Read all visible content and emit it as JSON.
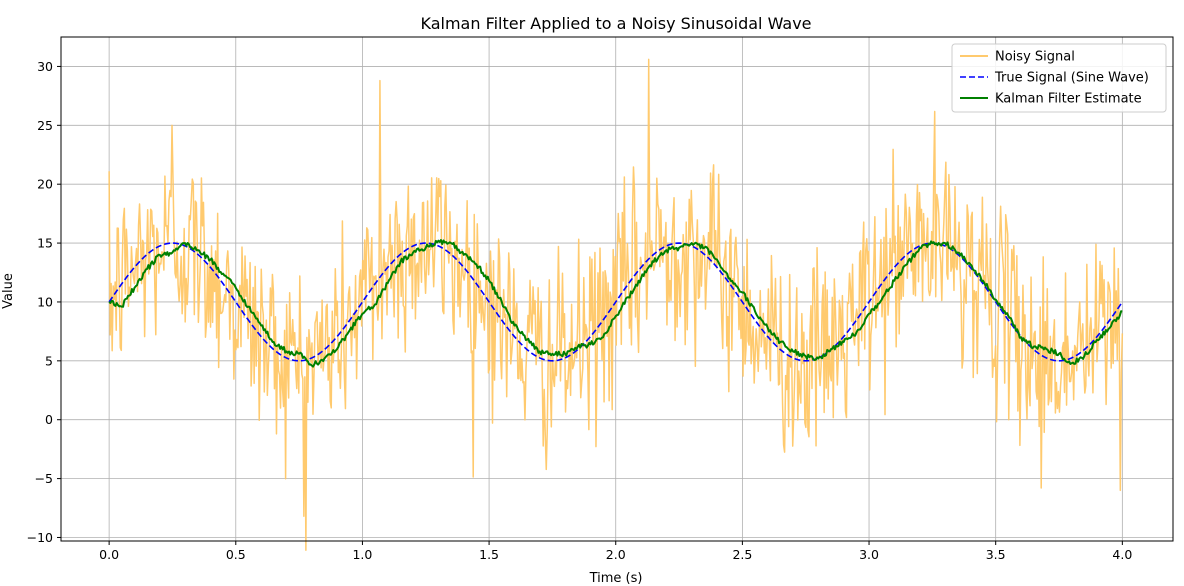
{
  "chart_data": {
    "type": "line",
    "title": "Kalman Filter Applied to a Noisy Sinusoidal Wave",
    "xlabel": "Time (s)",
    "ylabel": "Value",
    "xlim": [
      -0.19,
      4.2
    ],
    "ylim": [
      -10.3,
      32.5
    ],
    "xticks": [
      0.0,
      0.5,
      1.0,
      1.5,
      2.0,
      2.5,
      3.0,
      3.5,
      4.0
    ],
    "xtick_labels": [
      "0.0",
      "0.5",
      "1.0",
      "1.5",
      "2.0",
      "2.5",
      "3.0",
      "3.5",
      "4.0"
    ],
    "yticks": [
      -10,
      -5,
      0,
      5,
      10,
      15,
      20,
      25,
      30
    ],
    "ytick_labels": [
      "−10",
      "−5",
      "0",
      "5",
      "10",
      "15",
      "20",
      "25",
      "30"
    ],
    "grid": true,
    "legend_position": "top-right",
    "noise": {
      "sample_count": 1000,
      "center_function": "10 + 5*sin(2*pi*t)",
      "notable_spikes": [
        {
          "x": 0.25,
          "y": 25.0
        },
        {
          "x": 0.77,
          "y": -8.2
        },
        {
          "x": 1.07,
          "y": 28.8
        },
        {
          "x": 2.13,
          "y": 30.6
        },
        {
          "x": 3.68,
          "y": -5.8
        },
        {
          "x": 3.99,
          "y": -6.0
        }
      ]
    },
    "series": [
      {
        "name": "Noisy Signal",
        "color": "#FFC766",
        "style": "solid",
        "x_range": [
          0.0,
          4.0
        ],
        "description_values": "sine wave + gaussian noise (std ~4)"
      },
      {
        "name": "True Signal (Sine Wave)",
        "color": "#0000FF",
        "style": "dashed",
        "x": [
          0.0,
          0.25,
          0.5,
          0.75,
          1.0,
          1.25,
          1.5,
          1.75,
          2.0,
          2.25,
          2.5,
          2.75,
          3.0,
          3.25,
          3.5,
          3.75,
          4.0
        ],
        "values": [
          10,
          15,
          10,
          5,
          10,
          15,
          10,
          5,
          10,
          15,
          10,
          5,
          10,
          15,
          10,
          5,
          10
        ]
      },
      {
        "name": "Kalman Filter Estimate",
        "color": "#008000",
        "style": "solid",
        "x": [
          0.0,
          0.05,
          0.1,
          0.15,
          0.2,
          0.25,
          0.3,
          0.35,
          0.4,
          0.45,
          0.5,
          0.55,
          0.6,
          0.65,
          0.7,
          0.75,
          0.8,
          0.85,
          0.9,
          0.95,
          1.0,
          1.05,
          1.1,
          1.15,
          1.2,
          1.25,
          1.3,
          1.35,
          1.4,
          1.45,
          1.5,
          1.55,
          1.6,
          1.65,
          1.7,
          1.75,
          1.8,
          1.85,
          1.9,
          1.95,
          2.0,
          2.05,
          2.1,
          2.15,
          2.2,
          2.25,
          2.3,
          2.35,
          2.4,
          2.45,
          2.5,
          2.55,
          2.6,
          2.65,
          2.7,
          2.75,
          2.8,
          2.85,
          2.9,
          2.95,
          3.0,
          3.05,
          3.1,
          3.15,
          3.2,
          3.25,
          3.3,
          3.35,
          3.4,
          3.45,
          3.5,
          3.55,
          3.6,
          3.65,
          3.7,
          3.75,
          3.8,
          3.85,
          3.9,
          3.95,
          4.0
        ],
        "values": [
          10.0,
          9.6,
          11.2,
          12.8,
          14.0,
          14.2,
          15.0,
          14.4,
          13.6,
          12.4,
          11.2,
          9.6,
          8.0,
          6.6,
          5.8,
          5.6,
          4.6,
          5.2,
          6.0,
          7.6,
          9.0,
          9.8,
          11.6,
          13.4,
          14.2,
          14.6,
          15.2,
          15.0,
          14.0,
          13.2,
          11.8,
          10.0,
          8.0,
          6.8,
          5.8,
          5.6,
          5.6,
          6.2,
          6.4,
          7.0,
          8.8,
          10.4,
          12.0,
          13.4,
          14.4,
          14.6,
          15.0,
          14.6,
          13.6,
          12.0,
          10.8,
          9.2,
          7.8,
          6.6,
          5.8,
          5.4,
          5.2,
          6.0,
          6.6,
          7.4,
          9.0,
          10.2,
          11.8,
          13.2,
          14.6,
          15.0,
          15.0,
          14.2,
          13.2,
          11.8,
          10.2,
          8.8,
          7.0,
          6.2,
          6.0,
          5.6,
          4.8,
          5.4,
          6.8,
          7.8,
          9.2
        ]
      }
    ]
  }
}
